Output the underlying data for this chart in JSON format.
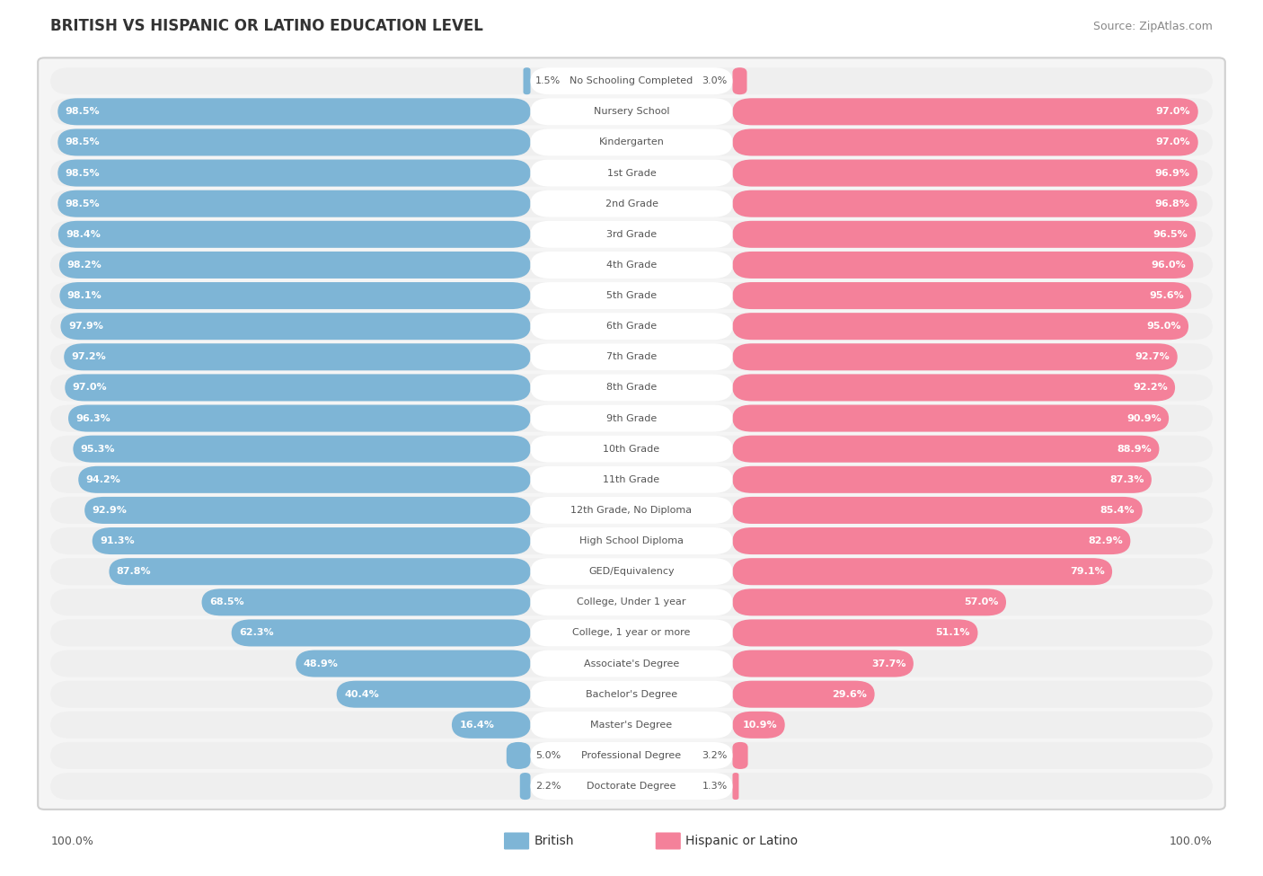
{
  "title": "BRITISH VS HISPANIC OR LATINO EDUCATION LEVEL",
  "source": "Source: ZipAtlas.com",
  "categories": [
    "No Schooling Completed",
    "Nursery School",
    "Kindergarten",
    "1st Grade",
    "2nd Grade",
    "3rd Grade",
    "4th Grade",
    "5th Grade",
    "6th Grade",
    "7th Grade",
    "8th Grade",
    "9th Grade",
    "10th Grade",
    "11th Grade",
    "12th Grade, No Diploma",
    "High School Diploma",
    "GED/Equivalency",
    "College, Under 1 year",
    "College, 1 year or more",
    "Associate's Degree",
    "Bachelor's Degree",
    "Master's Degree",
    "Professional Degree",
    "Doctorate Degree"
  ],
  "british": [
    1.5,
    98.5,
    98.5,
    98.5,
    98.5,
    98.4,
    98.2,
    98.1,
    97.9,
    97.2,
    97.0,
    96.3,
    95.3,
    94.2,
    92.9,
    91.3,
    87.8,
    68.5,
    62.3,
    48.9,
    40.4,
    16.4,
    5.0,
    2.2
  ],
  "hispanic": [
    3.0,
    97.0,
    97.0,
    96.9,
    96.8,
    96.5,
    96.0,
    95.6,
    95.0,
    92.7,
    92.2,
    90.9,
    88.9,
    87.3,
    85.4,
    82.9,
    79.1,
    57.0,
    51.1,
    37.7,
    29.6,
    10.9,
    3.2,
    1.3
  ],
  "british_color": "#7eb5d6",
  "hispanic_color": "#f4819a",
  "row_bg_color": "#efefef",
  "row_sep_color": "#ffffff",
  "label_color": "#555555",
  "value_color_inside": "#ffffff",
  "value_color_outside": "#555555",
  "title_fontsize": 12,
  "source_fontsize": 9,
  "legend_fontsize": 10,
  "bar_fontsize": 8,
  "label_fontsize": 8,
  "footer_label": "100.0%",
  "max_val": 100.0
}
